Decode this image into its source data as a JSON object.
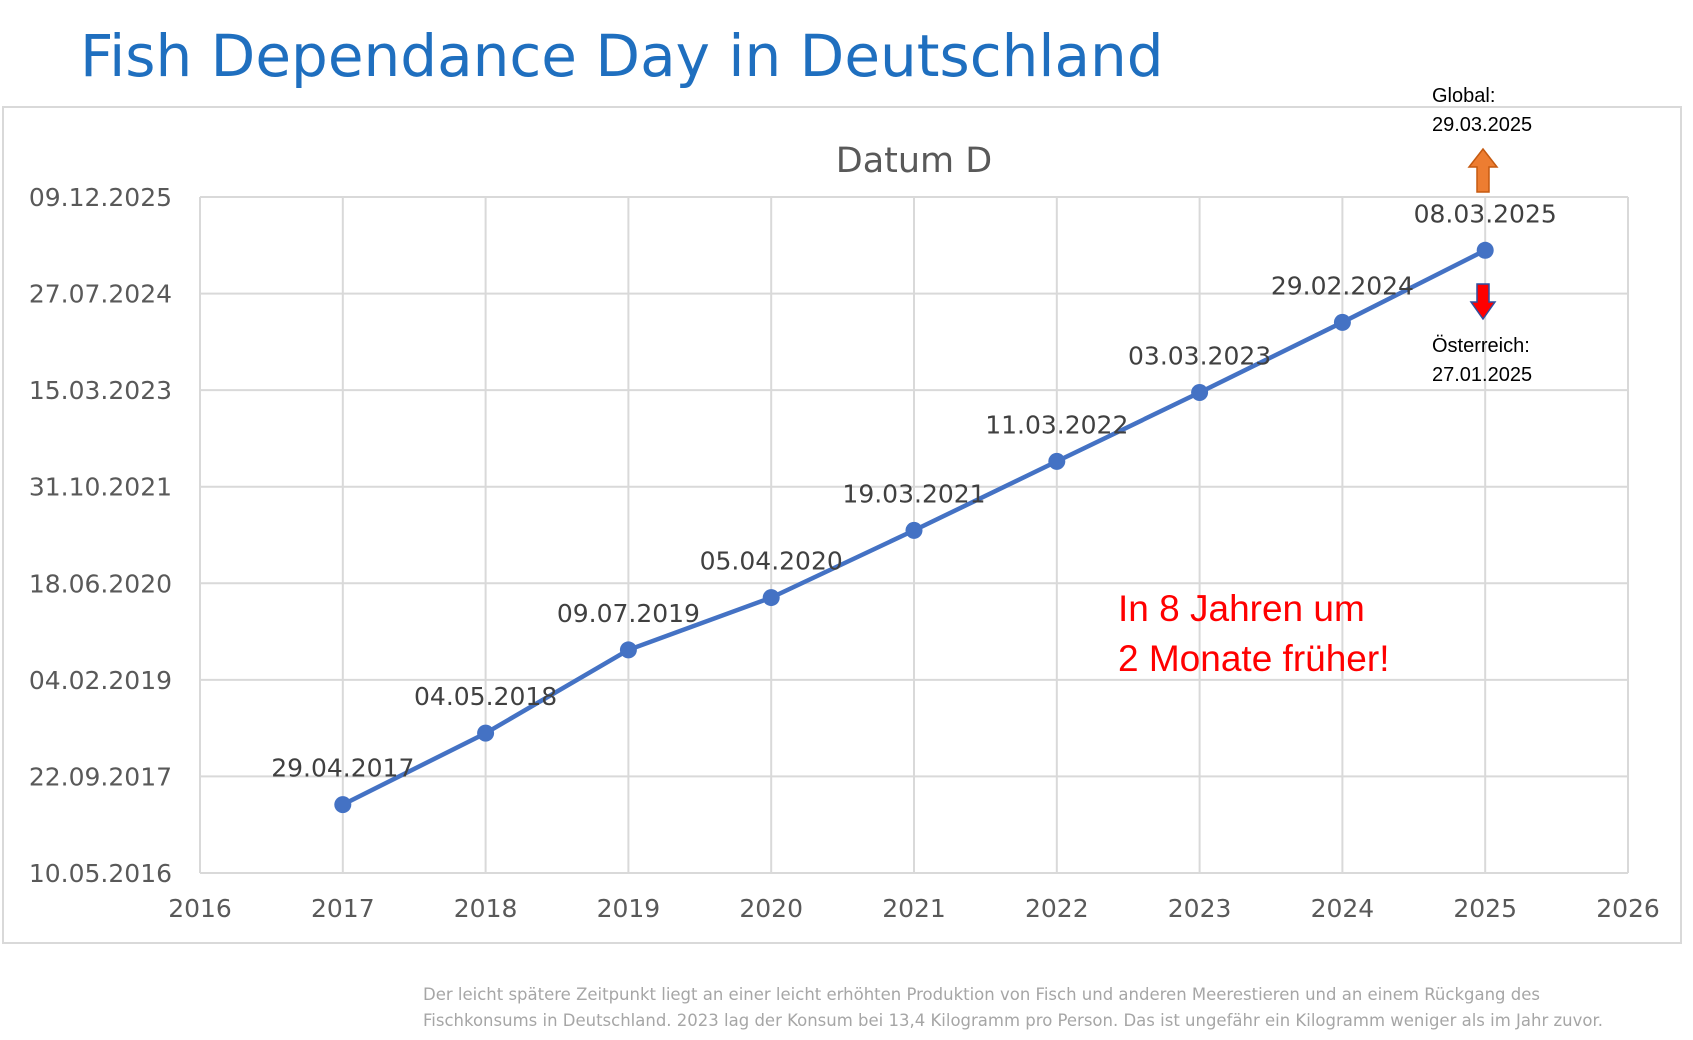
{
  "page": {
    "title": "Fish Dependance Day in Deutschland",
    "footnote_lines": [
      "Der leicht spätere Zeitpunkt liegt an einer leicht erhöhten Produktion von Fisch und anderen Meerestieren und an einem Rückgang des",
      "Fischkonsums in Deutschland. 2023 lag der Konsum bei 13,4 Kilogramm pro Person. Das ist ungefähr ein Kilogramm weniger als im Jahr zuvor."
    ]
  },
  "annotations": {
    "global_label": "Global:",
    "global_date": "29.03.2025",
    "austria_label": "Österreich:",
    "austria_date": "27.01.2025",
    "highlight_line1": "In 8 Jahren um",
    "highlight_line2": "2 Monate früher!"
  },
  "colors": {
    "title": "#1f6fbf",
    "series": "#4472c4",
    "grid": "#d9d9d9",
    "highlight_text": "#ff0000",
    "arrow_up": "#ed7d31",
    "arrow_down": "#ff0000",
    "arrow_down_border": "#2f4f9f"
  },
  "chart_data": {
    "type": "line",
    "title": "Datum D",
    "xlabel": "",
    "ylabel": "",
    "xlim": [
      2016,
      2026
    ],
    "x_ticks": [
      "2016",
      "2017",
      "2018",
      "2019",
      "2020",
      "2021",
      "2022",
      "2023",
      "2024",
      "2025",
      "2026"
    ],
    "ylim": [
      "10.05.2016",
      "09.12.2025"
    ],
    "y_ticks": [
      "10.05.2016",
      "22.09.2017",
      "04.02.2019",
      "18.06.2020",
      "31.10.2021",
      "15.03.2023",
      "27.07.2024",
      "09.12.2025"
    ],
    "grid": true,
    "legend": "none",
    "x": [
      2017,
      2018,
      2019,
      2020,
      2021,
      2022,
      2023,
      2024,
      2025
    ],
    "y": [
      "29.04.2017",
      "04.05.2018",
      "09.07.2019",
      "05.04.2020",
      "19.03.2021",
      "11.03.2022",
      "03.03.2023",
      "29.02.2024",
      "08.03.2025"
    ],
    "data_labels": [
      "29.04.2017",
      "04.05.2018",
      "09.07.2019",
      "05.04.2020",
      "19.03.2021",
      "11.03.2022",
      "03.03.2023",
      "29.02.2024",
      "08.03.2025"
    ]
  }
}
